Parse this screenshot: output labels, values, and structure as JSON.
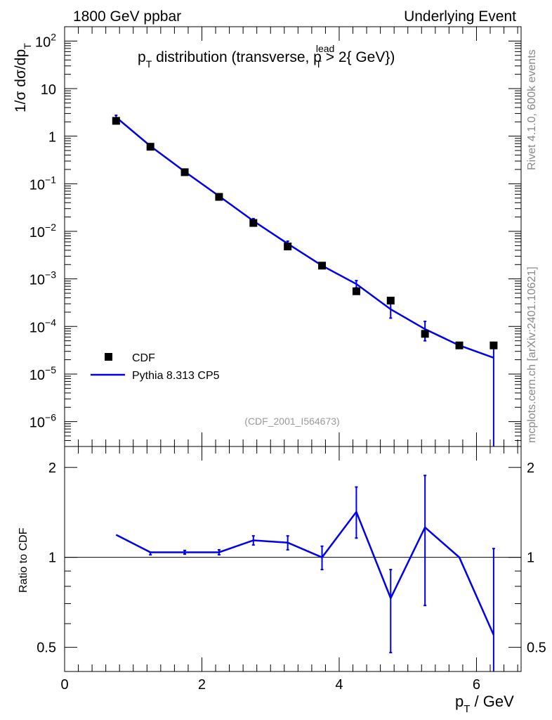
{
  "header": {
    "left": "1800 GeV ppbar",
    "right": "Underlying Event"
  },
  "side_labels": {
    "version": "Rivet 4.1.0,  600k events",
    "source": "mcplots.cern.ch [arXiv:2401.10621]"
  },
  "chart_data": [
    {
      "type": "scatter",
      "panel": "main",
      "title_parts": {
        "p": "p",
        "p_sub": "T",
        "mid": " distribution (transverse, p",
        "lead_sup": "lead",
        "lead_sub": "T",
        "tail": " > 2{ GeV})"
      },
      "ylabel_parts": {
        "main": "1/σ  dσ/dp",
        "sub": "T"
      },
      "y_scale": "log",
      "ylim": [
        3e-07,
        200
      ],
      "xlim": [
        0,
        6.65
      ],
      "y_ticks": [
        {
          "value": 100,
          "base": "10",
          "exp": "2"
        },
        {
          "value": 10,
          "base": "10",
          "exp": ""
        },
        {
          "value": 1,
          "base": "1",
          "exp": ""
        },
        {
          "value": 0.1,
          "base": "10",
          "exp": "−1"
        },
        {
          "value": 0.01,
          "base": "10",
          "exp": "−2"
        },
        {
          "value": 0.001,
          "base": "10",
          "exp": "−3"
        },
        {
          "value": 0.0001,
          "base": "10",
          "exp": "−4"
        },
        {
          "value": 1e-05,
          "base": "10",
          "exp": "−5"
        },
        {
          "value": 1e-06,
          "base": "10",
          "exp": "−6"
        }
      ],
      "watermark": "(CDF_2001_I564673)",
      "legend_position": "bottom-left",
      "series": [
        {
          "name": "CDF",
          "style": "markers",
          "color": "#000000",
          "x": [
            0.75,
            1.25,
            1.75,
            2.25,
            2.75,
            3.25,
            3.75,
            4.25,
            4.75,
            5.25,
            5.75,
            6.25
          ],
          "y": [
            2.1,
            0.6,
            0.175,
            0.053,
            0.015,
            0.0048,
            0.0019,
            0.00055,
            0.00035,
            7e-05,
            4e-05,
            4e-05
          ]
        },
        {
          "name": "Pythia 8.313 CP5",
          "style": "line",
          "color": "#0000ee",
          "x": [
            0.75,
            1.25,
            1.75,
            2.25,
            2.75,
            3.25,
            3.75,
            4.25,
            4.75,
            5.25,
            5.75,
            6.25
          ],
          "y": [
            2.5,
            0.62,
            0.18,
            0.055,
            0.0165,
            0.0055,
            0.0019,
            0.00078,
            0.00023,
            8.8e-05,
            4e-05,
            2.2e-05
          ],
          "y_err_lo": [
            2.25,
            0.6,
            0.17,
            0.052,
            0.0145,
            0.0048,
            0.0018,
            0.00065,
            0.00015,
            5e-05,
            4e-05,
            3e-07
          ],
          "y_err_hi": [
            2.75,
            0.64,
            0.19,
            0.058,
            0.0185,
            0.0062,
            0.002,
            0.00092,
            0.00031,
            0.000128,
            4e-05,
            4.4e-05
          ]
        }
      ]
    },
    {
      "type": "line",
      "panel": "ratio",
      "ylabel": "Ratio to CDF",
      "xlabel_parts": {
        "p": "p",
        "sub": "T",
        "rest": " / GeV"
      },
      "y_scale": "log",
      "ylim": [
        0.415,
        2.35
      ],
      "xlim": [
        0,
        6.65
      ],
      "x_ticks": [
        0,
        2,
        4,
        6
      ],
      "y_ticks": [
        0.5,
        1,
        2
      ],
      "reference_line": 1,
      "series": [
        {
          "name": "Pythia 8.313 CP5",
          "color": "#0000ee",
          "x": [
            0.75,
            1.25,
            1.75,
            2.25,
            2.75,
            3.25,
            3.75,
            4.25,
            4.75,
            5.25,
            5.75,
            6.25
          ],
          "y": [
            1.19,
            1.04,
            1.04,
            1.04,
            1.14,
            1.12,
            1.0,
            1.42,
            0.73,
            1.26,
            1.0,
            0.55
          ],
          "y_err_lo": [
            1.19,
            1.02,
            1.025,
            1.02,
            1.1,
            1.06,
            0.91,
            1.16,
            0.48,
            0.69,
            1.0,
            0.3
          ],
          "y_err_hi": [
            1.19,
            1.04,
            1.055,
            1.06,
            1.18,
            1.18,
            1.09,
            1.72,
            0.91,
            1.88,
            1.0,
            1.07
          ]
        }
      ]
    }
  ]
}
